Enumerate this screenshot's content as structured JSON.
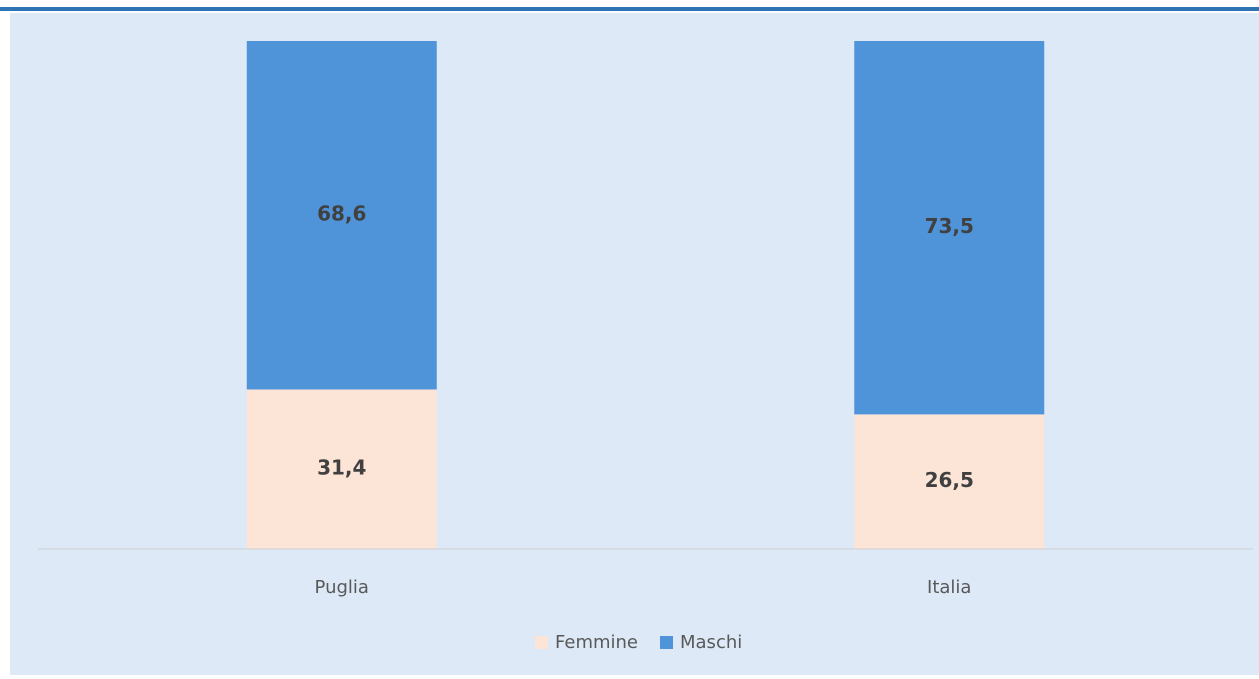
{
  "chart_data": {
    "type": "stacked_bar",
    "categories": [
      "Puglia",
      "Italia"
    ],
    "series": [
      {
        "name": "Femmine",
        "color": "#fce4d6",
        "values": [
          31.4,
          26.5
        ],
        "value_labels": [
          "31,4",
          "26,5"
        ]
      },
      {
        "name": "Maschi",
        "color": "#4f94d9",
        "values": [
          68.6,
          73.5
        ],
        "value_labels": [
          "68,6",
          "73,5"
        ]
      }
    ],
    "ylim": [
      0,
      100
    ],
    "legend": "bottom"
  }
}
